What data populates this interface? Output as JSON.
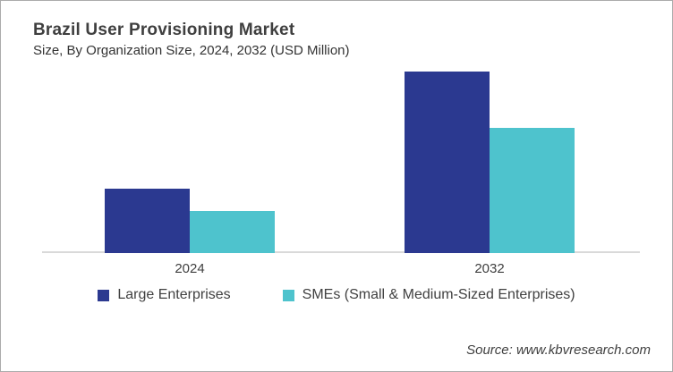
{
  "header": {
    "title": "Brazil User Provisioning Market",
    "subtitle": "Size, By Organization Size, 2024, 2032 (USD Million)"
  },
  "source_label": "Source: www.kbvresearch.com",
  "colors": {
    "large_enterprises": "#2b3990",
    "smes": "#4ec3cd",
    "axis_line": "#d9d9d9",
    "text": "#404040"
  },
  "chart_data": {
    "type": "bar",
    "title": "Brazil User Provisioning Market",
    "subtitle": "Size, By Organization Size, 2024, 2032 (USD Million)",
    "categories": [
      "2024",
      "2032"
    ],
    "series": [
      {
        "name": "Large Enterprises",
        "color": "#2b3990",
        "values": [
          35.5,
          100
        ]
      },
      {
        "name": "SMEs (Small & Medium-Sized Enterprises)",
        "color": "#4ec3cd",
        "values": [
          23.2,
          69
        ]
      }
    ],
    "value_scale": "relative index estimated from bar heights; no y-axis labels shown (2032 Large Enterprises = 100)",
    "ylim": [
      0,
      110
    ],
    "xlabel": "",
    "ylabel": "",
    "grid": false,
    "y_axis_visible": false,
    "legend_position": "bottom"
  }
}
